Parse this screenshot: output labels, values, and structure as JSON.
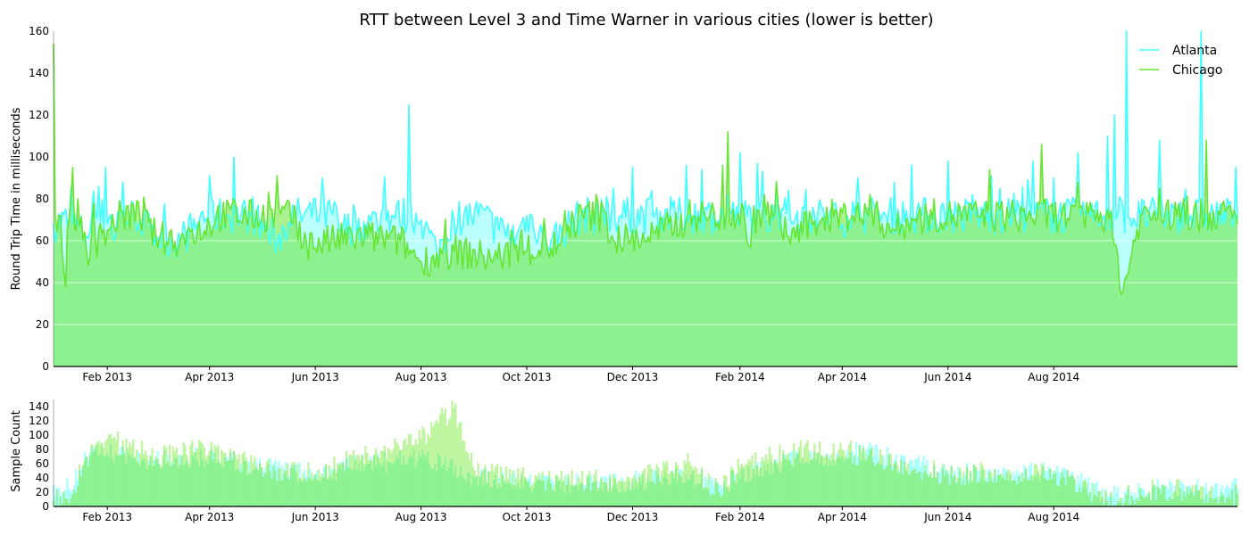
{
  "colors": {
    "atlanta": "#40ffff",
    "chicago": "#66e633",
    "fill_overlap": "#8bf196",
    "bar_atlanta": "#aaffff",
    "bar_chicago": "#bff5a0",
    "bar_overlap": "#8df292"
  },
  "chart_data": [
    {
      "type": "line",
      "title": "RTT between Level 3 and Time Warner in various cities (lower is better)",
      "ylabel": "Round Trip Time in milliseconds",
      "xlabel": "",
      "x_range": [
        "2013-01-01",
        "2014-11-15"
      ],
      "ylim": [
        0,
        160
      ],
      "yticks": [
        "0",
        "20",
        "40",
        "60",
        "80",
        "100",
        "120",
        "140",
        "160"
      ],
      "xticks": [
        {
          "date": "2013-02-01",
          "label": "Feb 2013"
        },
        {
          "date": "2013-04-01",
          "label": "Apr 2013"
        },
        {
          "date": "2013-06-01",
          "label": "Jun 2013"
        },
        {
          "date": "2013-08-01",
          "label": "Aug 2013"
        },
        {
          "date": "2013-10-01",
          "label": "Oct 2013"
        },
        {
          "date": "2013-12-01",
          "label": "Dec 2013"
        },
        {
          "date": "2014-02-01",
          "label": "Feb 2014"
        },
        {
          "date": "2014-04-01",
          "label": "Apr 2014"
        },
        {
          "date": "2014-06-01",
          "label": "Jun 2014"
        },
        {
          "date": "2014-08-01",
          "label": "Aug 2014"
        }
      ],
      "grid": "horizontal",
      "legend": "top-right",
      "series": [
        {
          "name": "Atlanta",
          "points": [
            [
              "2013-01-01",
              68
            ],
            [
              "2013-01-10",
              70
            ],
            [
              "2013-01-20",
              62
            ],
            [
              "2013-01-31",
              95
            ],
            [
              "2013-02-05",
              60
            ],
            [
              "2013-02-10",
              88
            ],
            [
              "2013-02-20",
              70
            ],
            [
              "2013-03-01",
              62
            ],
            [
              "2013-03-15",
              60
            ],
            [
              "2013-03-25",
              68
            ],
            [
              "2013-04-01",
              91
            ],
            [
              "2013-04-10",
              70
            ],
            [
              "2013-04-15",
              100
            ],
            [
              "2013-04-25",
              72
            ],
            [
              "2013-05-10",
              60
            ],
            [
              "2013-05-20",
              75
            ],
            [
              "2013-06-01",
              80
            ],
            [
              "2013-06-05",
              90
            ],
            [
              "2013-06-15",
              65
            ],
            [
              "2013-07-01",
              68
            ],
            [
              "2013-07-15",
              72
            ],
            [
              "2013-07-25",
              125
            ],
            [
              "2013-08-01",
              70
            ],
            [
              "2013-08-10",
              55
            ],
            [
              "2013-08-20",
              70
            ],
            [
              "2013-09-01",
              75
            ],
            [
              "2013-09-15",
              65
            ],
            [
              "2013-09-25",
              62
            ],
            [
              "2013-10-01",
              72
            ],
            [
              "2013-10-15",
              60
            ],
            [
              "2013-11-01",
              72
            ],
            [
              "2013-11-10",
              78
            ],
            [
              "2013-11-20",
              85
            ],
            [
              "2013-12-01",
              95
            ],
            [
              "2013-12-10",
              80
            ],
            [
              "2013-12-20",
              75
            ],
            [
              "2014-01-01",
              96
            ],
            [
              "2014-01-10",
              94
            ],
            [
              "2014-01-25",
              82
            ],
            [
              "2014-02-01",
              102
            ],
            [
              "2014-02-15",
              72
            ],
            [
              "2014-03-01",
              84
            ],
            [
              "2014-03-15",
              76
            ],
            [
              "2014-04-01",
              68
            ],
            [
              "2014-04-10",
              90
            ],
            [
              "2014-04-20",
              76
            ],
            [
              "2014-05-01",
              88
            ],
            [
              "2014-05-15",
              78
            ],
            [
              "2014-06-01",
              98
            ],
            [
              "2014-06-15",
              82
            ],
            [
              "2014-07-01",
              85
            ],
            [
              "2014-07-20",
              98
            ],
            [
              "2014-08-01",
              90
            ],
            [
              "2014-08-15",
              102
            ],
            [
              "2014-09-01",
              110
            ],
            [
              "2014-09-05",
              120
            ],
            [
              "2014-09-12",
              160
            ],
            [
              "2014-09-20",
              70
            ],
            [
              "2014-10-01",
              108
            ],
            [
              "2014-10-15",
              78
            ],
            [
              "2014-10-25",
              160
            ],
            [
              "2014-11-15",
              70
            ]
          ]
        },
        {
          "name": "Chicago",
          "points": [
            [
              "2013-01-01",
              154
            ],
            [
              "2013-01-04",
              72
            ],
            [
              "2013-01-08",
              38
            ],
            [
              "2013-01-12",
              95
            ],
            [
              "2013-01-20",
              55
            ],
            [
              "2013-02-01",
              65
            ],
            [
              "2013-02-15",
              78
            ],
            [
              "2013-03-01",
              62
            ],
            [
              "2013-03-15",
              60
            ],
            [
              "2013-04-01",
              68
            ],
            [
              "2013-04-15",
              80
            ],
            [
              "2013-05-01",
              70
            ],
            [
              "2013-05-10",
              91
            ],
            [
              "2013-05-25",
              58
            ],
            [
              "2013-06-10",
              60
            ],
            [
              "2013-07-01",
              62
            ],
            [
              "2013-07-20",
              60
            ],
            [
              "2013-08-01",
              50
            ],
            [
              "2013-08-20",
              55
            ],
            [
              "2013-09-10",
              52
            ],
            [
              "2013-10-01",
              55
            ],
            [
              "2013-10-20",
              58
            ],
            [
              "2013-11-10",
              82
            ],
            [
              "2013-11-20",
              60
            ],
            [
              "2013-12-10",
              62
            ],
            [
              "2014-01-01",
              70
            ],
            [
              "2014-01-25",
              112
            ],
            [
              "2014-02-05",
              60
            ],
            [
              "2014-02-15",
              82
            ],
            [
              "2014-03-01",
              62
            ],
            [
              "2014-03-20",
              70
            ],
            [
              "2014-04-10",
              78
            ],
            [
              "2014-05-01",
              65
            ],
            [
              "2014-05-20",
              72
            ],
            [
              "2014-06-10",
              76
            ],
            [
              "2014-06-25",
              94
            ],
            [
              "2014-07-10",
              70
            ],
            [
              "2014-07-25",
              106
            ],
            [
              "2014-08-10",
              70
            ],
            [
              "2014-09-01",
              75
            ],
            [
              "2014-09-10",
              36
            ],
            [
              "2014-09-20",
              72
            ],
            [
              "2014-10-01",
              85
            ],
            [
              "2014-10-15",
              80
            ],
            [
              "2014-10-28",
              108
            ],
            [
              "2014-11-15",
              68
            ]
          ]
        }
      ]
    },
    {
      "type": "bar",
      "title": "",
      "ylabel": "Sample Count",
      "xlabel": "",
      "x_range": [
        "2013-01-01",
        "2014-11-15"
      ],
      "ylim": [
        0,
        150
      ],
      "yticks": [
        "0",
        "20",
        "40",
        "60",
        "80",
        "100",
        "120",
        "140"
      ],
      "xticks": [
        {
          "date": "2013-02-01",
          "label": "Feb 2013"
        },
        {
          "date": "2013-04-01",
          "label": "Apr 2013"
        },
        {
          "date": "2013-06-01",
          "label": "Jun 2013"
        },
        {
          "date": "2013-08-01",
          "label": "Aug 2013"
        },
        {
          "date": "2013-10-01",
          "label": "Oct 2013"
        },
        {
          "date": "2013-12-01",
          "label": "Dec 2013"
        },
        {
          "date": "2014-02-01",
          "label": "Feb 2014"
        },
        {
          "date": "2014-04-01",
          "label": "Apr 2014"
        },
        {
          "date": "2014-06-01",
          "label": "Jun 2014"
        },
        {
          "date": "2014-08-01",
          "label": "Aug 2014"
        }
      ],
      "series": [
        {
          "name": "Atlanta",
          "points": [
            [
              "2013-01-01",
              30
            ],
            [
              "2013-01-10",
              25
            ],
            [
              "2013-01-20",
              70
            ],
            [
              "2013-02-01",
              75
            ],
            [
              "2013-03-01",
              65
            ],
            [
              "2013-04-01",
              70
            ],
            [
              "2013-05-01",
              55
            ],
            [
              "2013-06-01",
              45
            ],
            [
              "2013-07-01",
              60
            ],
            [
              "2013-08-01",
              70
            ],
            [
              "2013-09-01",
              40
            ],
            [
              "2013-10-01",
              35
            ],
            [
              "2013-11-01",
              32
            ],
            [
              "2013-12-01",
              35
            ],
            [
              "2014-01-01",
              45
            ],
            [
              "2014-01-20",
              30
            ],
            [
              "2014-02-01",
              40
            ],
            [
              "2014-03-01",
              65
            ],
            [
              "2014-04-01",
              70
            ],
            [
              "2014-04-15",
              80
            ],
            [
              "2014-05-01",
              65
            ],
            [
              "2014-06-01",
              50
            ],
            [
              "2014-07-01",
              45
            ],
            [
              "2014-08-01",
              50
            ],
            [
              "2014-09-01",
              15
            ],
            [
              "2014-09-15",
              20
            ],
            [
              "2014-10-01",
              25
            ],
            [
              "2014-11-15",
              25
            ]
          ]
        },
        {
          "name": "Chicago",
          "points": [
            [
              "2013-01-01",
              8
            ],
            [
              "2013-01-10",
              5
            ],
            [
              "2013-01-20",
              70
            ],
            [
              "2013-02-01",
              95
            ],
            [
              "2013-03-01",
              70
            ],
            [
              "2013-04-01",
              78
            ],
            [
              "2013-05-01",
              55
            ],
            [
              "2013-06-01",
              45
            ],
            [
              "2013-07-01",
              75
            ],
            [
              "2013-08-01",
              95
            ],
            [
              "2013-08-20",
              138
            ],
            [
              "2013-09-01",
              50
            ],
            [
              "2013-10-01",
              38
            ],
            [
              "2013-11-01",
              35
            ],
            [
              "2013-12-01",
              40
            ],
            [
              "2014-01-01",
              60
            ],
            [
              "2014-01-20",
              20
            ],
            [
              "2014-02-01",
              55
            ],
            [
              "2014-03-01",
              75
            ],
            [
              "2014-04-01",
              80
            ],
            [
              "2014-05-01",
              60
            ],
            [
              "2014-06-01",
              45
            ],
            [
              "2014-07-01",
              45
            ],
            [
              "2014-08-01",
              45
            ],
            [
              "2014-09-01",
              8
            ],
            [
              "2014-09-15",
              15
            ],
            [
              "2014-10-01",
              25
            ],
            [
              "2014-11-15",
              18
            ]
          ]
        }
      ]
    }
  ]
}
